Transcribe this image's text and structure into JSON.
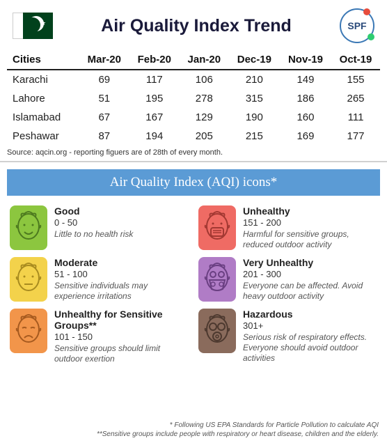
{
  "header": {
    "title": "Air Quality Index Trend",
    "spf_label": "SPF"
  },
  "table": {
    "columns": [
      "Cities",
      "Mar-20",
      "Feb-20",
      "Jan-20",
      "Dec-19",
      "Nov-19",
      "Oct-19"
    ],
    "rows": [
      [
        "Karachi",
        "69",
        "117",
        "106",
        "210",
        "149",
        "155"
      ],
      [
        "Lahore",
        "51",
        "195",
        "278",
        "315",
        "186",
        "265"
      ],
      [
        "Islamabad",
        "67",
        "167",
        "129",
        "190",
        "160",
        "111"
      ],
      [
        "Peshawar",
        "87",
        "194",
        "205",
        "215",
        "169",
        "177"
      ]
    ],
    "header_border": "#202020",
    "font_size": 15
  },
  "source": "Source: aqcin.org - reporting figuers are of 28th of every month.",
  "banner": {
    "text": "Air Quality Index (AQI) icons*",
    "bg": "#5b9bd5",
    "fg": "#ffffff"
  },
  "legend": [
    {
      "name": "Good",
      "range": "0 - 50",
      "desc": "Little to no health risk",
      "bg": "#8cc63f",
      "stroke": "#4d7a1f",
      "face": "smile"
    },
    {
      "name": "Unhealthy",
      "range": "151 - 200",
      "desc": "Harmful for sensitive groups, reduced outdoor activity",
      "bg": "#ef6b64",
      "stroke": "#a23832",
      "face": "mask"
    },
    {
      "name": "Moderate",
      "range": "51 - 100",
      "desc": "Sensitive individuals may experience irritations",
      "bg": "#f3d24b",
      "stroke": "#a88b1f",
      "face": "neutral"
    },
    {
      "name": "Very Unhealthy",
      "range": "201 - 300",
      "desc": "Everyone can be affected. Avoid heavy outdoor activity",
      "bg": "#b07cc6",
      "stroke": "#6a3f82",
      "face": "respirator"
    },
    {
      "name": "Unhealthy for Sensitive Groups**",
      "range": "101 - 150",
      "desc": "Sensitive groups should limit outdoor exertion",
      "bg": "#f2954a",
      "stroke": "#a65a1f",
      "face": "sad"
    },
    {
      "name": "Hazardous",
      "range": "301+",
      "desc": "Serious risk of respiratory effects. Everyone should avoid outdoor activities",
      "bg": "#8a6b5c",
      "stroke": "#4d392f",
      "face": "gasmask"
    }
  ],
  "footnotes": [
    "* Following US EPA Standards for Particle Pollution to calculate AQI",
    "**Sensitive groups include people with respiratory or heart disease, children and the elderly."
  ],
  "colors": {
    "page_bg": "#ffffff",
    "title_color": "#1a1a3a",
    "flag_green": "#01411c"
  }
}
